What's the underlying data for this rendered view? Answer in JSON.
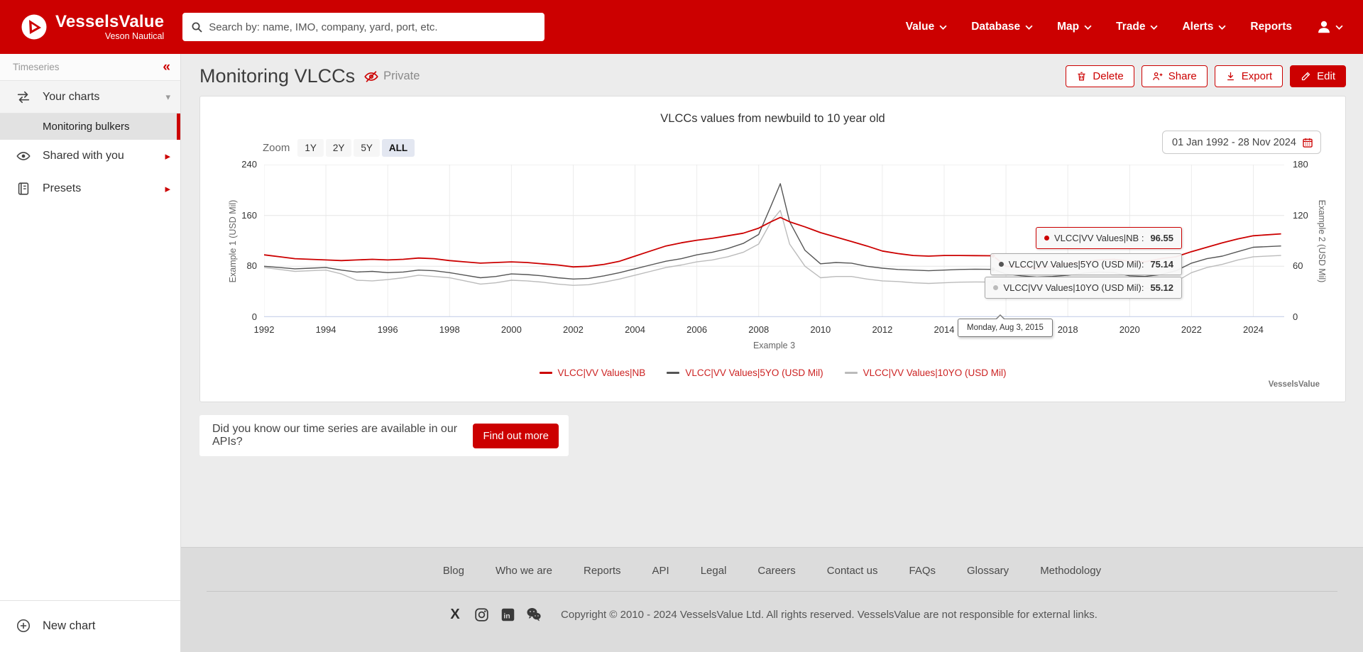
{
  "colors": {
    "accent": "#cc0000",
    "series_nb": "#cc0000",
    "series_5yo": "#555555",
    "series_10yo": "#bbbbbb"
  },
  "navbar": {
    "brand": {
      "name": "VesselsValue",
      "subtitle": "Veson Nautical"
    },
    "search_placeholder": "Search by: name, IMO, company, yard, port, etc.",
    "menu": [
      {
        "label": "Value"
      },
      {
        "label": "Database"
      },
      {
        "label": "Map"
      },
      {
        "label": "Trade"
      },
      {
        "label": "Alerts"
      },
      {
        "label": "Reports"
      }
    ]
  },
  "sidebar": {
    "section_title": "Timeseries",
    "collapse_icon": "«",
    "your_charts_label": "Your charts",
    "selected_chart": "Monitoring bulkers",
    "shared_label": "Shared with you",
    "presets_label": "Presets",
    "new_chart_label": "New chart"
  },
  "page": {
    "title": "Monitoring VLCCs",
    "privacy_label": "Private",
    "actions": {
      "delete": "Delete",
      "share": "Share",
      "export": "Export",
      "edit": "Edit"
    }
  },
  "chart": {
    "zoom_label": "Zoom",
    "zoom_options": [
      "1Y",
      "2Y",
      "5Y",
      "ALL"
    ],
    "zoom_selected": "ALL",
    "date_range": "01 Jan 1992 - 28 Nov 2024",
    "watermark": "VesselsValue",
    "tooltip": {
      "date": "Monday, Aug 3, 2015",
      "items": [
        {
          "label": "VLCC|VV Values|NB :",
          "value": "96.55",
          "color": "#cc0000"
        },
        {
          "label": "VLCC|VV Values|5YO (USD Mil):",
          "value": "75.14",
          "color": "#555555"
        },
        {
          "label": "VLCC|VV Values|10YO (USD Mil):",
          "value": "55.12",
          "color": "#bbbbbb"
        }
      ]
    }
  },
  "chart_data": {
    "type": "line",
    "title": "VLCCs values from newbuild to 10 year old",
    "xlabel": "Example 3",
    "ylabel_left": "Example 1 (USD Mil)",
    "ylabel_right": "Example 2 (USD Mil)",
    "x_range": [
      1992,
      2025
    ],
    "x_ticks": [
      1992,
      1994,
      1996,
      1998,
      2000,
      2002,
      2004,
      2006,
      2008,
      2010,
      2012,
      2014,
      2016,
      2018,
      2020,
      2022,
      2024
    ],
    "ylim_left": [
      0,
      240
    ],
    "yticks_left": [
      0,
      80,
      160,
      240
    ],
    "ylim_right": [
      0,
      180
    ],
    "yticks_right": [
      0,
      60,
      120,
      180
    ],
    "grid": true,
    "legend_position": "bottom",
    "x": [
      1992,
      1992.5,
      1993,
      1993.5,
      1994,
      1994.5,
      1995,
      1995.5,
      1996,
      1996.5,
      1997,
      1997.5,
      1998,
      1998.5,
      1999,
      1999.5,
      2000,
      2000.5,
      2001,
      2001.5,
      2002,
      2002.5,
      2003,
      2003.5,
      2004,
      2004.5,
      2005,
      2005.5,
      2006,
      2006.5,
      2007,
      2007.5,
      2008,
      2008.4,
      2008.7,
      2009,
      2009.5,
      2010,
      2010.5,
      2011,
      2011.5,
      2012,
      2012.5,
      2013,
      2013.5,
      2014,
      2014.5,
      2015,
      2015.58,
      2016,
      2016.5,
      2017,
      2017.5,
      2018,
      2018.5,
      2019,
      2019.5,
      2020,
      2020.5,
      2021,
      2021.5,
      2022,
      2022.5,
      2023,
      2023.5,
      2024,
      2024.9
    ],
    "series": [
      {
        "name": "VLCC|VV Values|NB",
        "color": "#cc0000",
        "axis": "left",
        "width": 1.8,
        "values": [
          98,
          95,
          92,
          91,
          90,
          89,
          90,
          91,
          90,
          91,
          93,
          92,
          89,
          87,
          85,
          86,
          87,
          86,
          84,
          82,
          79,
          80,
          83,
          88,
          96,
          104,
          112,
          117,
          121,
          124,
          128,
          132,
          140,
          150,
          157,
          150,
          142,
          133,
          126,
          119,
          112,
          104,
          100,
          97,
          96,
          97,
          97,
          96.8,
          96.55,
          80,
          78,
          77,
          80,
          84,
          87,
          90,
          91,
          88,
          87,
          92,
          95,
          103,
          110,
          117,
          123,
          128,
          131
        ]
      },
      {
        "name": "VLCC|VV Values|5YO (USD Mil)",
        "color": "#555555",
        "axis": "left",
        "width": 1.4,
        "values": [
          80,
          78,
          76,
          77,
          78,
          74,
          71,
          72,
          70,
          71,
          74,
          73,
          70,
          66,
          62,
          64,
          68,
          67,
          65,
          62,
          60,
          61,
          65,
          70,
          76,
          82,
          88,
          92,
          98,
          102,
          108,
          116,
          130,
          175,
          210,
          150,
          105,
          84,
          86,
          85,
          80,
          77,
          75,
          74,
          73,
          74,
          75,
          75.5,
          75.14,
          68,
          65,
          63,
          64,
          66,
          69,
          71,
          70,
          65,
          64,
          67,
          73,
          85,
          92,
          96,
          103,
          110,
          112
        ]
      },
      {
        "name": "VLCC|VV Values|10YO (USD Mil)",
        "color": "#bbbbbb",
        "axis": "left",
        "width": 1.4,
        "values": [
          78,
          75,
          72,
          73,
          74,
          68,
          58,
          57,
          59,
          62,
          66,
          64,
          62,
          57,
          52,
          54,
          58,
          57,
          55,
          52,
          50,
          51,
          55,
          60,
          66,
          72,
          78,
          82,
          87,
          90,
          95,
          102,
          115,
          150,
          168,
          115,
          80,
          62,
          64,
          64,
          60,
          57,
          56,
          54,
          53,
          54,
          55,
          55.4,
          55.12,
          48,
          46,
          44,
          45,
          47,
          50,
          52,
          51,
          46,
          45,
          48,
          56,
          70,
          78,
          83,
          90,
          95,
          97
        ]
      }
    ],
    "hover": {
      "x": 2015.58,
      "date": "Monday, Aug 3, 2015",
      "values": [
        96.55,
        75.14,
        55.12
      ]
    }
  },
  "api_banner": {
    "text": "Did you know our time series are available in our APIs?",
    "button": "Find out more"
  },
  "footer": {
    "links": [
      "Blog",
      "Who we are",
      "Reports",
      "API",
      "Legal",
      "Careers",
      "Contact us",
      "FAQs",
      "Glossary",
      "Methodology"
    ],
    "social": [
      "x",
      "instagram",
      "linkedin",
      "wechat"
    ],
    "copyright": "Copyright © 2010 - 2024 VesselsValue Ltd. All rights reserved. VesselsValue are not responsible for external links."
  }
}
